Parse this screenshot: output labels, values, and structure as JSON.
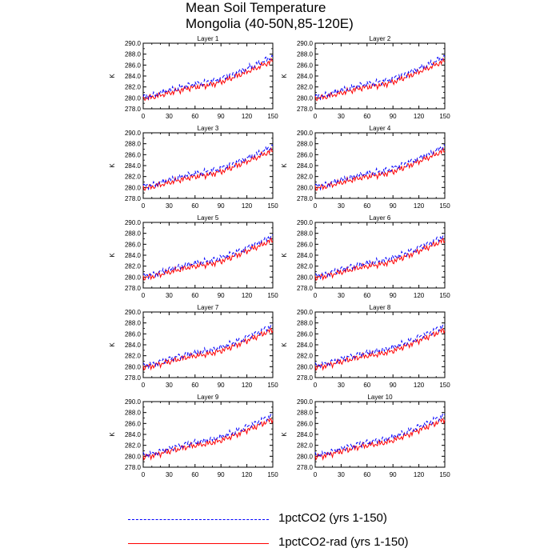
{
  "title": "Mean Soil Temperature",
  "subtitle": "Mongolia (40-50N,85-120E)",
  "legend": [
    {
      "label": "1pctCO2 (yrs 1-150)",
      "color": "#0000ff",
      "style": "dashed"
    },
    {
      "label": "1pctCO2-rad (yrs 1-150)",
      "color": "#ff0000",
      "style": "solid"
    }
  ],
  "chart_data": {
    "type": "line",
    "layout": "5 rows x 2 columns of panels, legend below",
    "panels": [
      "Layer 1",
      "Layer 2",
      "Layer 3",
      "Layer 4",
      "Layer 5",
      "Layer 6",
      "Layer 7",
      "Layer 8",
      "Layer 9",
      "Layer 10"
    ],
    "ylabel": "K",
    "xlim": [
      0,
      150
    ],
    "ylim": [
      278.0,
      290.0
    ],
    "xticks": [
      0,
      30,
      60,
      90,
      120,
      150
    ],
    "yticks": [
      "278.0",
      "280.0",
      "282.0",
      "284.0",
      "286.0",
      "288.0",
      "290.0"
    ],
    "series": [
      {
        "name": "1pctCO2 (yrs 1-150)",
        "color": "#0000ff",
        "style": "dashed",
        "x": [
          0,
          10,
          20,
          30,
          40,
          50,
          60,
          70,
          80,
          90,
          100,
          110,
          120,
          130,
          140,
          150
        ],
        "y": [
          280.2,
          280.4,
          280.9,
          281.4,
          281.8,
          282.2,
          282.5,
          282.8,
          283.1,
          283.5,
          284.1,
          284.7,
          285.4,
          286.0,
          286.8,
          287.6
        ]
      },
      {
        "name": "1pctCO2-rad (yrs 1-150)",
        "color": "#ff0000",
        "style": "solid",
        "x": [
          0,
          10,
          20,
          30,
          40,
          50,
          60,
          70,
          80,
          90,
          100,
          110,
          120,
          130,
          140,
          150
        ],
        "y": [
          279.9,
          280.1,
          280.5,
          280.9,
          281.3,
          281.7,
          282.0,
          282.2,
          282.5,
          282.9,
          283.5,
          284.1,
          284.8,
          285.4,
          286.1,
          286.8
        ]
      }
    ]
  }
}
